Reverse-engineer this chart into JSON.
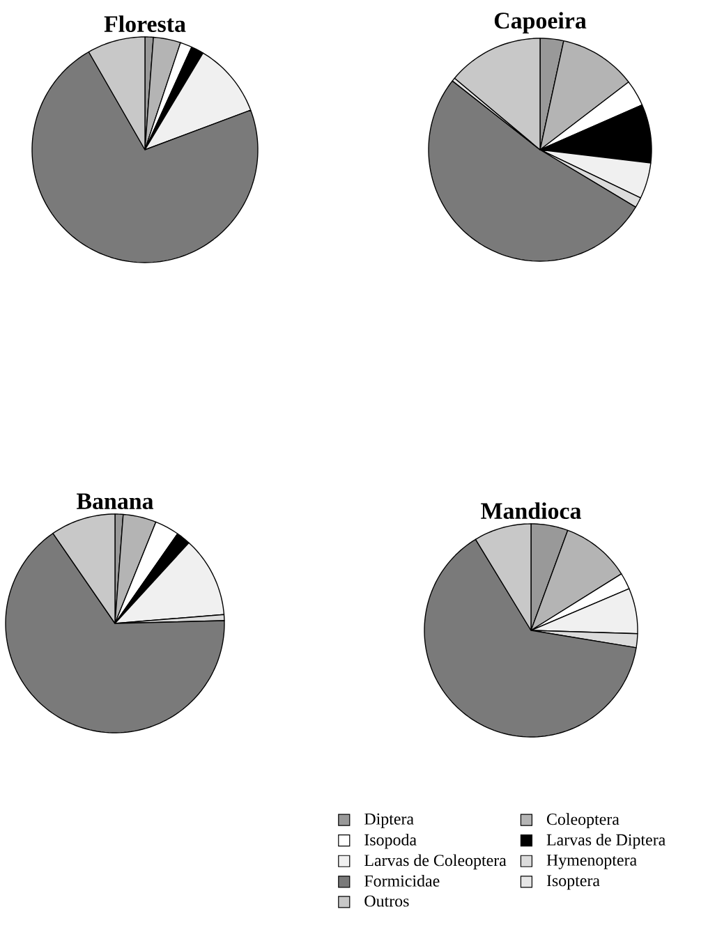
{
  "chart_data": [
    {
      "type": "pie",
      "title": "Floresta",
      "categories": [
        null,
        null,
        null,
        null,
        null,
        null,
        null,
        null,
        null
      ],
      "values": [
        1.2,
        3.9,
        1.7,
        1.8,
        10.7,
        0,
        72.4,
        0,
        8.3
      ],
      "colors": [
        "#999999",
        "#b4b4b4",
        "#ffffff",
        "#000000",
        "#f0f0f0",
        "#dcdcdc",
        "#7a7a7a",
        "#e6e6e6",
        "#c8c8c8"
      ]
    },
    {
      "type": "pie",
      "title": "Capoeira",
      "categories": [
        null,
        null,
        null,
        null,
        null,
        null,
        null,
        null,
        null
      ],
      "values": [
        3.4,
        11.2,
        3.8,
        8.5,
        5.2,
        1.5,
        52.0,
        0.5,
        13.9
      ],
      "colors": [
        "#999999",
        "#b4b4b4",
        "#ffffff",
        "#000000",
        "#f0f0f0",
        "#dcdcdc",
        "#7a7a7a",
        "#e6e6e6",
        "#c8c8c8"
      ]
    },
    {
      "type": "pie",
      "title": "Banana",
      "categories": [
        null,
        null,
        null,
        null,
        null,
        null,
        null,
        null,
        null
      ],
      "values": [
        1.2,
        4.9,
        3.6,
        2.1,
        11.9,
        0.9,
        65.8,
        0,
        9.6
      ],
      "colors": [
        "#999999",
        "#b4b4b4",
        "#ffffff",
        "#000000",
        "#f0f0f0",
        "#dcdcdc",
        "#7a7a7a",
        "#e6e6e6",
        "#c8c8c8"
      ]
    },
    {
      "type": "pie",
      "title": "Mandioca",
      "categories": [
        "Diptera",
        "Coleoptera",
        "Isopoda",
        "Larvas de Diptera",
        "Larvas de Coleoptera",
        "Hymenoptera",
        "Formicidae",
        "Isoptera",
        "Outros"
      ],
      "values": [
        5.6,
        10.5,
        2.5,
        0,
        6.9,
        2.1,
        63.7,
        0,
        8.7
      ],
      "colors": [
        "#999999",
        "#b4b4b4",
        "#ffffff",
        "#000000",
        "#f0f0f0",
        "#dcdcdc",
        "#7a7a7a",
        "#e6e6e6",
        "#c8c8c8"
      ],
      "legend": "bottom"
    }
  ]
}
